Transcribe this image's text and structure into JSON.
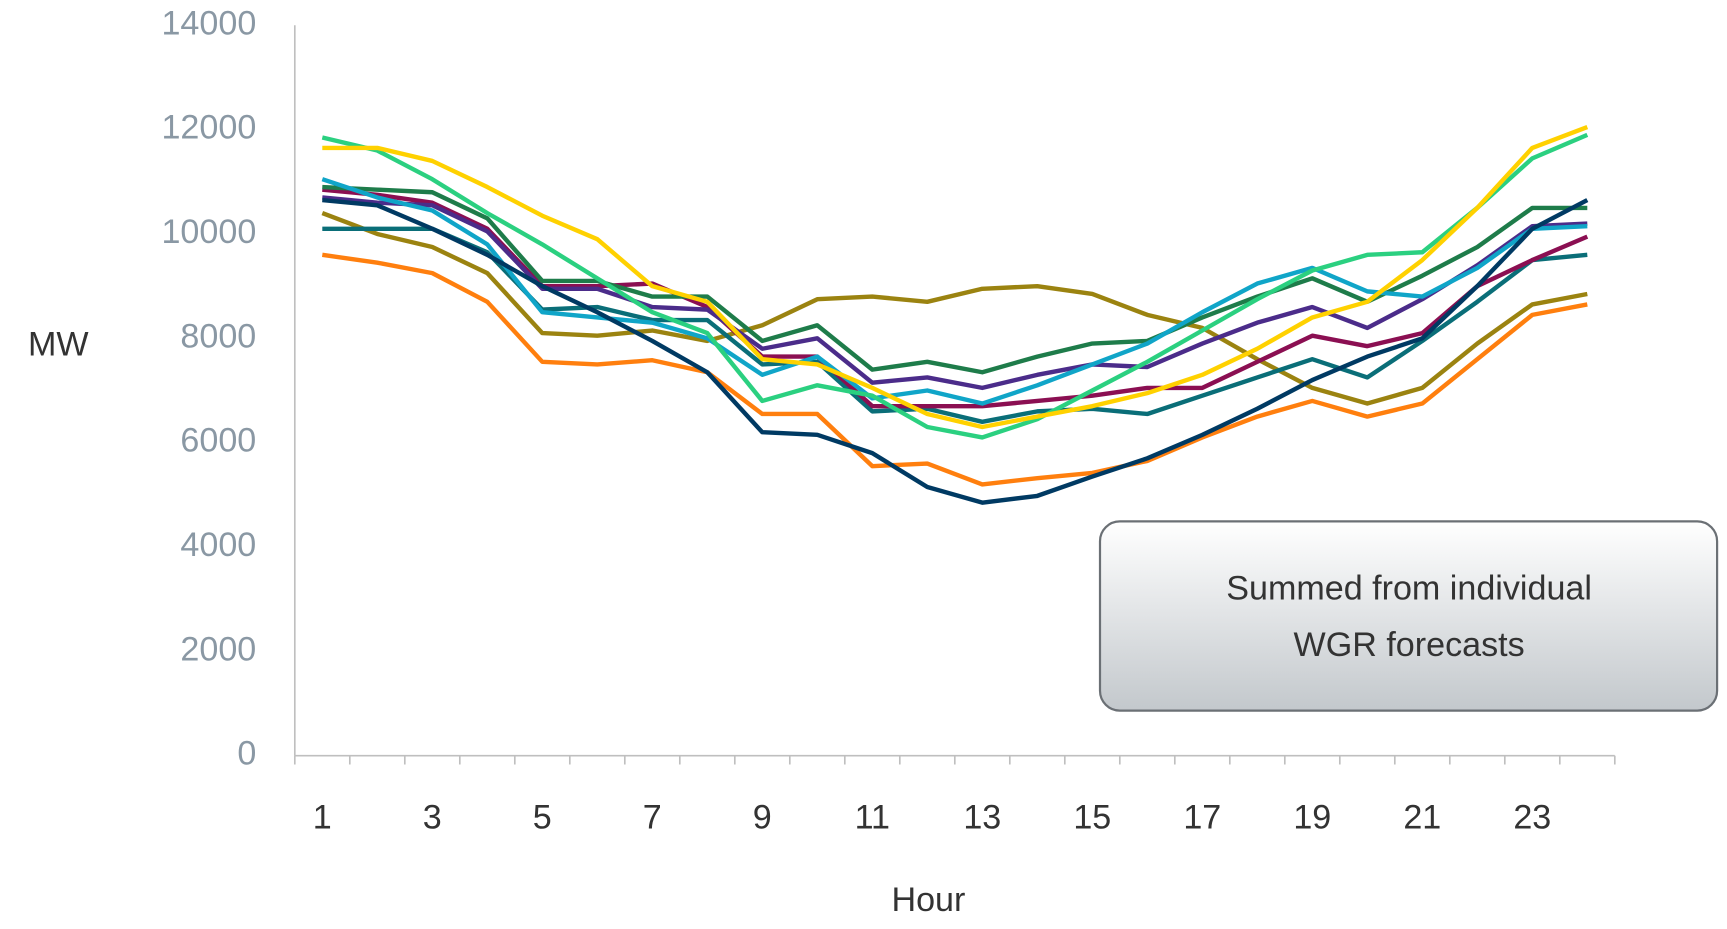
{
  "chart_data": {
    "type": "line",
    "ylabel": "MW",
    "xlabel": "Hour",
    "annotation": [
      "Summed from individual",
      "WGR forecasts"
    ],
    "categories": [
      1,
      null,
      3,
      null,
      5,
      null,
      7,
      null,
      9,
      null,
      11,
      null,
      13,
      null,
      15,
      null,
      17,
      null,
      19,
      null,
      21,
      null,
      23,
      null
    ],
    "ylim": [
      0,
      14000
    ],
    "yticks": [
      0,
      2000,
      4000,
      6000,
      8000,
      10000,
      12000,
      14000
    ],
    "series": [
      {
        "color": "#ff7f0e",
        "values": [
          9600,
          9450,
          9250,
          8700,
          7550,
          7500,
          7580,
          7350,
          6550,
          6550,
          5550,
          5600,
          5200,
          5320,
          5420,
          5650,
          6100,
          6500,
          6800,
          6500,
          6750,
          7600,
          8450,
          8650
        ]
      },
      {
        "color": "#9b8310",
        "values": [
          10400,
          10000,
          9750,
          9250,
          8100,
          8050,
          8150,
          7950,
          8250,
          8750,
          8800,
          8700,
          8950,
          9000,
          8850,
          8450,
          8200,
          7600,
          7050,
          6750,
          7050,
          7900,
          8650,
          8850
        ]
      },
      {
        "color": "#0a6e78",
        "values": [
          10100,
          10100,
          10100,
          9650,
          8550,
          8600,
          8350,
          8350,
          7500,
          7550,
          6600,
          6650,
          6400,
          6600,
          6650,
          6550,
          6900,
          7250,
          7600,
          7250,
          7950,
          8700,
          9500,
          9600
        ]
      },
      {
        "color": "#8b0f52",
        "values": [
          10850,
          10750,
          10600,
          10100,
          9000,
          9000,
          9050,
          8600,
          7650,
          7650,
          6700,
          6700,
          6700,
          6800,
          6900,
          7050,
          7050,
          7550,
          8050,
          7850,
          8100,
          9000,
          9500,
          9950
        ]
      },
      {
        "color": "#4b2c8a",
        "values": [
          10700,
          10600,
          10550,
          10050,
          8950,
          8950,
          8600,
          8550,
          7800,
          8000,
          7150,
          7250,
          7050,
          7300,
          7500,
          7450,
          7900,
          8300,
          8600,
          8200,
          8750,
          9400,
          10150,
          10200
        ]
      },
      {
        "color": "#1e7c4a",
        "values": [
          10900,
          10850,
          10800,
          10300,
          9100,
          9100,
          8800,
          8800,
          7950,
          8250,
          7400,
          7550,
          7350,
          7650,
          7900,
          7950,
          8400,
          8800,
          9150,
          8700,
          9200,
          9750,
          10500,
          10500
        ]
      },
      {
        "color": "#10a5c8",
        "values": [
          11050,
          10700,
          10450,
          9800,
          8500,
          8400,
          8300,
          8000,
          7300,
          7650,
          6850,
          7000,
          6750,
          7100,
          7500,
          7900,
          8500,
          9050,
          9350,
          8900,
          8800,
          9350,
          10100,
          10150
        ]
      },
      {
        "color": "#2bd080",
        "values": [
          11850,
          11600,
          11050,
          10400,
          9800,
          9150,
          8500,
          8100,
          6800,
          7100,
          6900,
          6300,
          6100,
          6450,
          7000,
          7550,
          8150,
          8750,
          9300,
          9600,
          9650,
          10500,
          11450,
          11900
        ]
      },
      {
        "color": "#ffd100",
        "values": [
          11650,
          11650,
          11400,
          10900,
          10350,
          9900,
          9000,
          8700,
          7600,
          7500,
          7050,
          6550,
          6300,
          6500,
          6700,
          6950,
          7300,
          7800,
          8400,
          8700,
          9500,
          10500,
          11650,
          12050
        ]
      },
      {
        "color": "#003a63",
        "values": [
          10650,
          10550,
          10100,
          9600,
          9000,
          8500,
          7950,
          7350,
          6200,
          6150,
          5800,
          5150,
          4850,
          4980,
          5350,
          5700,
          6150,
          6650,
          7200,
          7650,
          8000,
          9000,
          10100,
          10650
        ]
      }
    ]
  }
}
